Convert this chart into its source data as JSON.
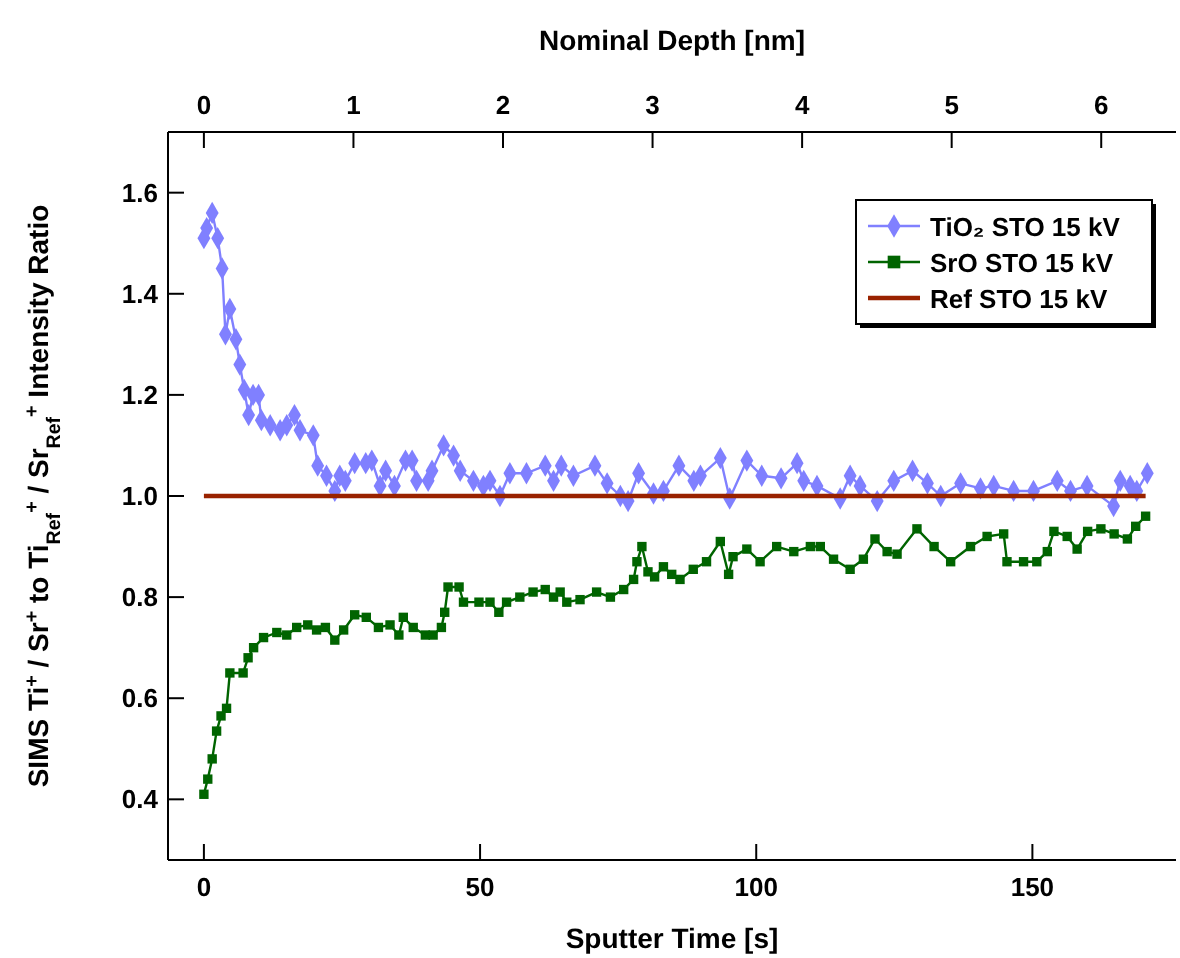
{
  "chart_data": {
    "type": "line",
    "xlabel": "Sputter Time [s]",
    "x2label": "Nominal Depth [nm]",
    "ylabel": "SIMS Ti$^{+}$ / Sr$^{+}$ to Ti$_{Ref}$$^{+}$ / Sr$_{Ref}$$^{+}$ Intensity Ratio",
    "xlim": [
      -6.5,
      176
    ],
    "xticks": [
      0,
      50,
      100,
      150
    ],
    "x2lim": [
      -0.24,
      6.5
    ],
    "x2ticks": [
      0,
      1,
      2,
      3,
      4,
      5,
      6
    ],
    "ylim": [
      0.28,
      1.72
    ],
    "yticks": [
      {
        "value": 0.4,
        "label": "0.4"
      },
      {
        "value": 0.6,
        "label": "0.6"
      },
      {
        "value": 0.8,
        "label": "0.8"
      },
      {
        "value": 1,
        "label": "1.0"
      },
      {
        "value": 1.2,
        "label": "1.2"
      },
      {
        "value": 1.4,
        "label": "1.4"
      },
      {
        "value": 1.6,
        "label": "1.6"
      }
    ],
    "grid": false,
    "legend": "top right",
    "line_style": "solid",
    "series": [
      {
        "name": "TiO₂ STO 15 kV",
        "color": "#8080ff",
        "marker": "diamond",
        "x": [
          0,
          0.5,
          1.5,
          2.5,
          3.3,
          3.9,
          4.7,
          5.8,
          6.5,
          7.3,
          8.1,
          8.9,
          9.9,
          10.4,
          12,
          13.8,
          15,
          16.4,
          17.4,
          19.8,
          20.6,
          22.2,
          23.7,
          24.6,
          25.6,
          27.3,
          29.3,
          30.4,
          31.9,
          32.9,
          34.5,
          36.5,
          37.7,
          38.5,
          40.6,
          41.3,
          43.4,
          45.2,
          46.4,
          48.8,
          50.6,
          51.8,
          53.6,
          55.4,
          58.4,
          61.8,
          63.3,
          64.7,
          66.9,
          70.8,
          73,
          75.4,
          76.8,
          78.7,
          81.4,
          83.2,
          86,
          88.7,
          89.9,
          93.5,
          95.2,
          98.3,
          101,
          104.5,
          107.4,
          108.6,
          111,
          115.2,
          117,
          118.8,
          121.9,
          124.9,
          128.3,
          131,
          133.4,
          137,
          140.6,
          143,
          146.6,
          150.2,
          154.5,
          156.9,
          159.9,
          164.7,
          165.9,
          167.7,
          168.9,
          170.8
        ],
        "values": [
          1.51,
          1.53,
          1.56,
          1.51,
          1.45,
          1.32,
          1.37,
          1.31,
          1.26,
          1.21,
          1.16,
          1.2,
          1.2,
          1.15,
          1.14,
          1.13,
          1.14,
          1.16,
          1.13,
          1.12,
          1.06,
          1.04,
          1.01,
          1.04,
          1.03,
          1.065,
          1.065,
          1.07,
          1.02,
          1.05,
          1.02,
          1.07,
          1.07,
          1.03,
          1.03,
          1.05,
          1.1,
          1.08,
          1.05,
          1.03,
          1.02,
          1.03,
          1.0,
          1.045,
          1.045,
          1.06,
          1.03,
          1.06,
          1.04,
          1.06,
          1.025,
          1.0,
          0.99,
          1.045,
          1.005,
          1.01,
          1.06,
          1.03,
          1.04,
          1.075,
          0.995,
          1.07,
          1.04,
          1.035,
          1.065,
          1.03,
          1.02,
          0.995,
          1.04,
          1.02,
          0.99,
          1.03,
          1.05,
          1.025,
          1.0,
          1.025,
          1.015,
          1.02,
          1.01,
          1.01,
          1.03,
          1.01,
          1.02,
          0.98,
          1.03,
          1.02,
          1.01,
          1.045
        ]
      },
      {
        "name": "SrO STO 15 kV",
        "color": "#006400",
        "marker": "square",
        "x": [
          0,
          0.7,
          1.5,
          2.3,
          3.1,
          4.1,
          4.7,
          7.1,
          8,
          9,
          10.8,
          13.2,
          15,
          16.8,
          18.8,
          20.4,
          22,
          23.7,
          25.3,
          27.3,
          29.4,
          31.6,
          33.7,
          35.3,
          36.1,
          37.9,
          40.1,
          41.5,
          43,
          43.6,
          44.2,
          46.2,
          47,
          49.8,
          51.8,
          53.4,
          54.8,
          57.2,
          59.6,
          61.8,
          63.3,
          64.5,
          65.7,
          68.1,
          71.1,
          73.6,
          76,
          77.8,
          78.4,
          79.3,
          80.4,
          81.6,
          83.2,
          84.7,
          86.2,
          88.6,
          91,
          93.5,
          95,
          95.8,
          98.3,
          100.7,
          103.7,
          106.8,
          109.8,
          111.6,
          114,
          117,
          119.4,
          121.5,
          123.7,
          125.5,
          129.1,
          132.2,
          135.2,
          138.8,
          141.8,
          144.8,
          145.4,
          148.4,
          150.8,
          152.7,
          153.9,
          156.3,
          158.1,
          160,
          162.4,
          164.8,
          167.2,
          168.7,
          170.5
        ],
        "values": [
          0.41,
          0.44,
          0.48,
          0.535,
          0.565,
          0.58,
          0.65,
          0.65,
          0.68,
          0.7,
          0.72,
          0.73,
          0.725,
          0.74,
          0.745,
          0.735,
          0.74,
          0.715,
          0.735,
          0.765,
          0.76,
          0.74,
          0.745,
          0.725,
          0.76,
          0.74,
          0.725,
          0.725,
          0.74,
          0.77,
          0.82,
          0.82,
          0.79,
          0.79,
          0.79,
          0.77,
          0.79,
          0.8,
          0.81,
          0.815,
          0.8,
          0.81,
          0.79,
          0.795,
          0.81,
          0.8,
          0.815,
          0.835,
          0.87,
          0.9,
          0.85,
          0.84,
          0.86,
          0.845,
          0.835,
          0.855,
          0.87,
          0.91,
          0.845,
          0.88,
          0.895,
          0.87,
          0.9,
          0.89,
          0.9,
          0.9,
          0.875,
          0.855,
          0.875,
          0.915,
          0.89,
          0.885,
          0.935,
          0.9,
          0.87,
          0.9,
          0.92,
          0.925,
          0.87,
          0.87,
          0.87,
          0.89,
          0.93,
          0.92,
          0.895,
          0.93,
          0.935,
          0.925,
          0.915,
          0.94,
          0.96
        ]
      },
      {
        "name": "Ref STO 15 kV",
        "color": "#992200",
        "marker": "none",
        "x": [
          0,
          170.5
        ],
        "values": [
          1,
          1
        ]
      }
    ]
  }
}
